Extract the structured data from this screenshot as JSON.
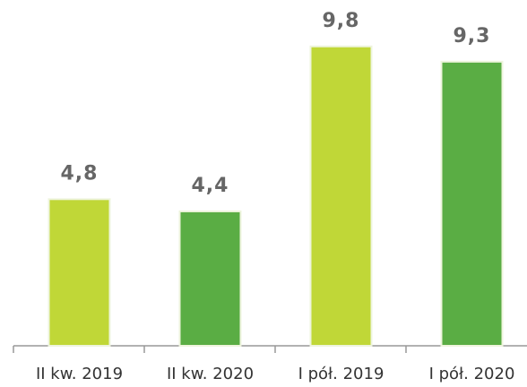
{
  "chart_data": {
    "type": "bar",
    "categories": [
      "II kw. 2019",
      "II kw. 2020",
      "I pół. 2019",
      "I pół. 2020"
    ],
    "values": [
      4.8,
      4.4,
      9.8,
      9.3
    ],
    "value_labels": [
      "4,8",
      "4,4",
      "9,8",
      "9,3"
    ],
    "colors": [
      "#c0d737",
      "#5aad44",
      "#c0d737",
      "#5aad44"
    ],
    "ylim": [
      0,
      10
    ]
  }
}
